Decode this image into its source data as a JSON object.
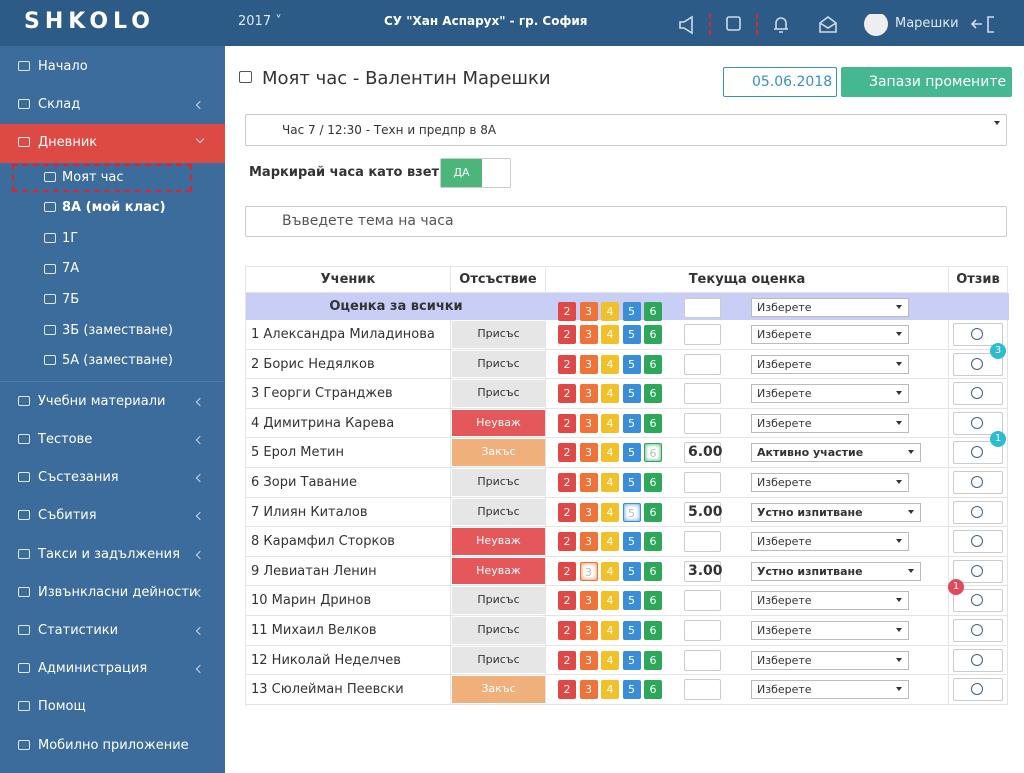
{
  "header": {
    "logo": "SHKOLO",
    "year": "2017",
    "school": "СУ \"Хан Аспарух\" - гр. София",
    "user": "Марешки"
  },
  "sidebar": {
    "items": [
      {
        "label": "Начало",
        "arrow": false
      },
      {
        "label": "Склад",
        "arrow": true
      },
      {
        "label": "Дневник",
        "arrow": true,
        "active": true
      },
      {
        "label": "Моят час",
        "sub": true,
        "selected": true
      },
      {
        "label": "8А (мой клас)",
        "sub": true,
        "bold": true
      },
      {
        "label": "1Г",
        "sub": true
      },
      {
        "label": "7А",
        "sub": true
      },
      {
        "label": "7Б",
        "sub": true
      },
      {
        "label": "3Б (заместване)",
        "sub": true
      },
      {
        "label": "5А (заместване)",
        "sub": true
      },
      {
        "label": "Учебни материали",
        "arrow": true
      },
      {
        "label": "Тестове",
        "arrow": true
      },
      {
        "label": "Състезания",
        "arrow": true
      },
      {
        "label": "Събития",
        "arrow": true
      },
      {
        "label": "Такси и задължения",
        "arrow": true
      },
      {
        "label": "Извънкласни дейности",
        "arrow": true
      },
      {
        "label": "Статистики",
        "arrow": true
      },
      {
        "label": "Администрация",
        "arrow": true
      },
      {
        "label": "Помощ",
        "arrow": false
      },
      {
        "label": "Мобилно приложение",
        "arrow": false
      }
    ]
  },
  "page": {
    "title": "Моят час - Валентин Марешки",
    "date": "05.06.2018",
    "save": "Запази промените",
    "lesson": "Час 7 / 12:30 - Техн и предпр в 8А",
    "mark_label": "Маркирай часа като взет:",
    "toggle": "ДА",
    "topic_placeholder": "Въведете тема на часа"
  },
  "table": {
    "headers": [
      "Ученик",
      "Отсъствие",
      "Текуща оценка",
      "Отзив"
    ],
    "all_label": "Оценка за всички",
    "grade_buttons": [
      2,
      3,
      4,
      5,
      6
    ],
    "rows": [
      {
        "student": "1 Александра Миладинова",
        "absence": {
          "label": "Присъс",
          "color": "#e6e6e6"
        },
        "grade": null,
        "comment": "Изберете"
      },
      {
        "student": "2 Борис Недялков",
        "absence": {
          "label": "Присъс",
          "color": "#e6e6e6"
        },
        "grade": null,
        "comment": "Изберете",
        "badge": {
          "count": 3,
          "color": "#2bbccf",
          "side": "right"
        }
      },
      {
        "student": "3 Георги Странджев",
        "absence": {
          "label": "Присъс",
          "color": "#e6e6e6"
        },
        "grade": null,
        "comment": "Изберете"
      },
      {
        "student": "4 Димитрина Карева",
        "absence": {
          "label": "Неуваж",
          "color": "#e4575b"
        },
        "grade": null,
        "comment": "Изберете"
      },
      {
        "student": "5 Ерол Метин",
        "absence": {
          "label": "Закъс",
          "color": "#efb07c"
        },
        "grade": "6.00",
        "comment": "Активно участие",
        "badge": {
          "count": 1,
          "color": "#2bbccf",
          "side": "right"
        }
      },
      {
        "student": "6 Зори Тавание",
        "absence": {
          "label": "Присъс",
          "color": "#e6e6e6"
        },
        "grade": null,
        "comment": "Изберете"
      },
      {
        "student": "7 Илиян Киталов",
        "absence": {
          "label": "Присъс",
          "color": "#e6e6e6"
        },
        "grade": "5.00",
        "comment": "Устно изпитване"
      },
      {
        "student": "8 Карамфил Сторков",
        "absence": {
          "label": "Неуваж",
          "color": "#e4575b"
        },
        "grade": null,
        "comment": "Изберете"
      },
      {
        "student": "9 Левиатан Ленин",
        "absence": {
          "label": "Неуваж",
          "color": "#e4575b"
        },
        "grade": "3.00",
        "comment": "Устно изпитване"
      },
      {
        "student": "10 Марин Дринов",
        "absence": {
          "label": "Присъс",
          "color": "#e6e6e6"
        },
        "grade": null,
        "comment": "Изберете",
        "badge": {
          "count": 1,
          "color": "#e24a5c",
          "side": "left"
        }
      },
      {
        "student": "11 Михаил Велков",
        "absence": {
          "label": "Присъс",
          "color": "#e6e6e6"
        },
        "grade": null,
        "comment": "Изберете"
      },
      {
        "student": "12 Николай Неделчев",
        "absence": {
          "label": "Присъс",
          "color": "#e6e6e6"
        },
        "grade": null,
        "comment": "Изберете"
      },
      {
        "student": "13 Сюлейман Пеевски",
        "absence": {
          "label": "Закъс",
          "color": "#efb07c"
        },
        "grade": null,
        "comment": "Изберете"
      }
    ]
  }
}
